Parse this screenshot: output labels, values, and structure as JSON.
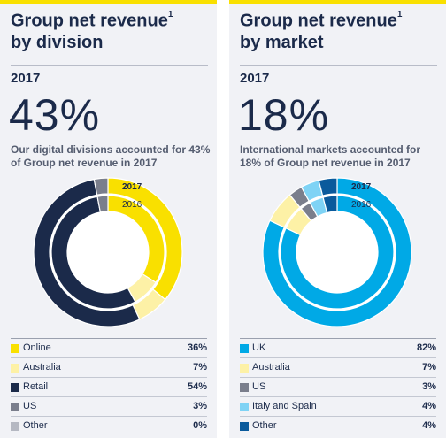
{
  "chart_data": [
    {
      "type": "pie",
      "title": "Group net revenue",
      "title_sup": "1",
      "title_line2": "by division",
      "year": "2017",
      "headline": "43%",
      "description": "Our digital divisions accounted for 43% of Group net revenue in 2017",
      "ring_labels": [
        "2017",
        "2016"
      ],
      "categories": [
        "Online",
        "Australia",
        "Retail",
        "US",
        "Other"
      ],
      "values_text": [
        "36%",
        "7%",
        "54%",
        "3%",
        "0%"
      ],
      "series": [
        {
          "name": "2017",
          "values": [
            36,
            7,
            54,
            3,
            0
          ]
        },
        {
          "name": "2016",
          "values": [
            34,
            8,
            55,
            3,
            0
          ]
        }
      ],
      "colors": [
        "#f9e000",
        "#fdf1a6",
        "#1b2a4a",
        "#7a7e8c",
        "#b5b8c2"
      ]
    },
    {
      "type": "pie",
      "title": "Group net revenue",
      "title_sup": "1",
      "title_line2": "by market",
      "year": "2017",
      "headline": "18%",
      "description": "International markets accounted for 18% of Group net revenue in 2017",
      "ring_labels": [
        "2017",
        "2016"
      ],
      "categories": [
        "UK",
        "Australia",
        "US",
        "Italy and Spain",
        "Other"
      ],
      "values_text": [
        "82%",
        "7%",
        "3%",
        "4%",
        "4%"
      ],
      "series": [
        {
          "name": "2017",
          "values": [
            82,
            7,
            3,
            4,
            4
          ]
        },
        {
          "name": "2016",
          "values": [
            82,
            7,
            3,
            4,
            4
          ]
        }
      ],
      "colors": [
        "#00a9e6",
        "#fdf1a6",
        "#7a7e8c",
        "#7fd3f5",
        "#0a5a9c"
      ]
    }
  ]
}
